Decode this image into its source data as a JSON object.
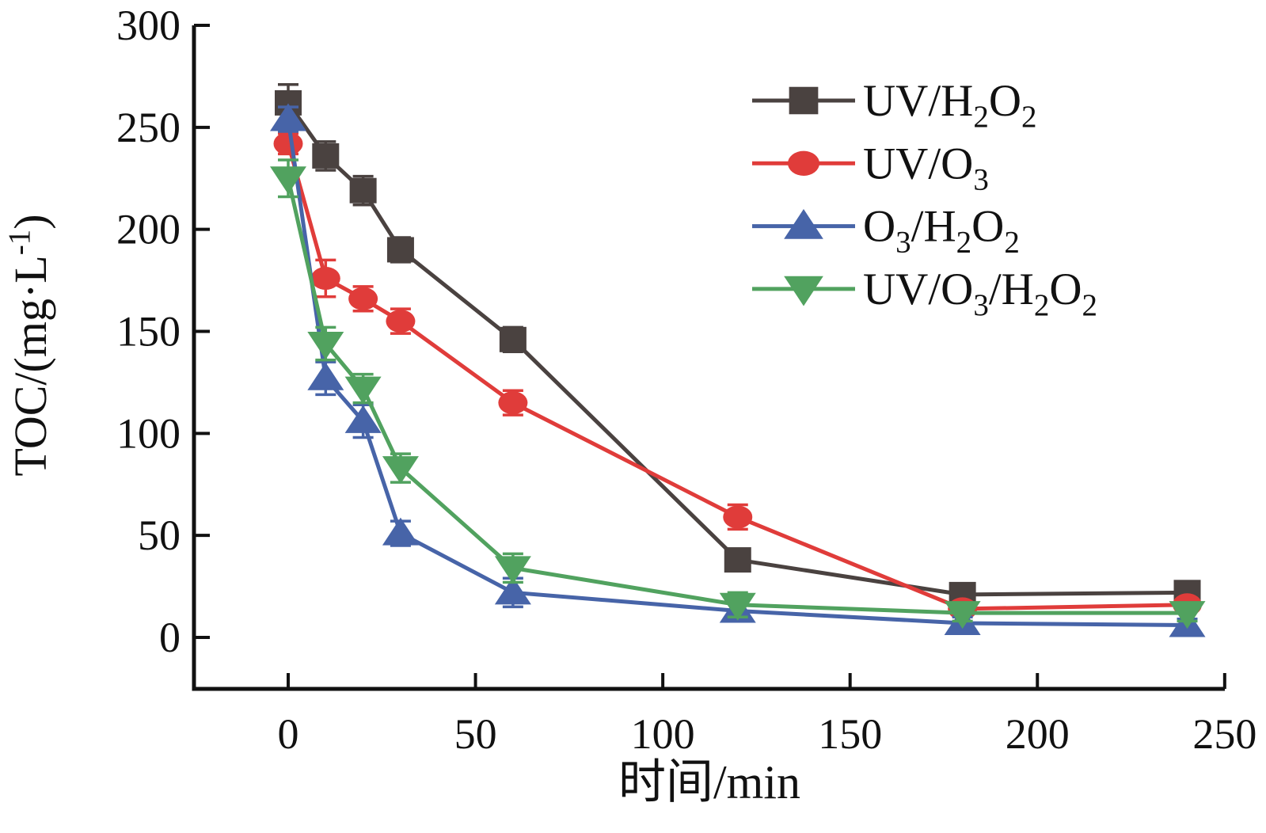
{
  "figure": {
    "background": "#ffffff",
    "axis_color": "#111111",
    "xlabel": "时间/min",
    "ylabel_plain": "TOC/(mg·L-1)",
    "ylabel_parts": [
      {
        "t": "TOC/(mg·L"
      },
      {
        "t": "-1",
        "sup": true
      },
      {
        "t": ")"
      }
    ]
  },
  "chart_data": {
    "type": "line",
    "x": [
      0,
      10,
      20,
      30,
      60,
      120,
      180,
      240
    ],
    "xticks": [
      0,
      50,
      100,
      150,
      200,
      250
    ],
    "yticks": [
      0,
      50,
      100,
      150,
      200,
      250,
      300
    ],
    "xlim": [
      -25,
      251
    ],
    "ylim": [
      -25,
      300
    ],
    "xlabel": "时间/min",
    "ylabel": "TOC/(mg·L^-1)",
    "grid": false,
    "legend_position": "upper-right-inside",
    "error_bars": true,
    "series": [
      {
        "name": "UV/H2O2",
        "slug": "uv-h2o2",
        "marker": "square",
        "color": "#4a4240",
        "values": [
          262,
          236,
          219,
          190,
          146,
          38,
          21,
          22
        ],
        "errors": [
          9,
          7,
          7,
          6,
          6,
          4,
          3,
          3
        ],
        "label_parts": [
          {
            "t": "UV/H"
          },
          {
            "t": "2",
            "sub": true
          },
          {
            "t": "O"
          },
          {
            "t": "2",
            "sub": true
          }
        ]
      },
      {
        "name": "UV/O3",
        "slug": "uv-o3",
        "marker": "circle",
        "color": "#e03c3a",
        "values": [
          242,
          176,
          166,
          155,
          115,
          59,
          14,
          16
        ],
        "errors": [
          5,
          9,
          6,
          6,
          6,
          6,
          3,
          3
        ],
        "label_parts": [
          {
            "t": "UV/O"
          },
          {
            "t": "3",
            "sub": true
          }
        ]
      },
      {
        "name": "O3/H2O2",
        "slug": "o3-h2o2",
        "marker": "triangle-up",
        "color": "#4764a8",
        "values": [
          254,
          127,
          106,
          51,
          22,
          13,
          7,
          6
        ],
        "errors": [
          6,
          8,
          8,
          6,
          7,
          5,
          3,
          3
        ],
        "label_parts": [
          {
            "t": "O"
          },
          {
            "t": "3",
            "sub": true
          },
          {
            "t": "/H"
          },
          {
            "t": "2",
            "sub": true
          },
          {
            "t": "O"
          },
          {
            "t": "2",
            "sub": true
          }
        ]
      },
      {
        "name": "UV/O3/H2O2",
        "slug": "uv-o3-h2o2",
        "marker": "triangle-down",
        "color": "#51a25f",
        "values": [
          225,
          144,
          122,
          83,
          34,
          16,
          12,
          12
        ],
        "errors": [
          9,
          8,
          7,
          7,
          7,
          6,
          4,
          4
        ],
        "label_parts": [
          {
            "t": "UV/O"
          },
          {
            "t": "3",
            "sub": true
          },
          {
            "t": "/H"
          },
          {
            "t": "2",
            "sub": true
          },
          {
            "t": "O"
          },
          {
            "t": "2",
            "sub": true
          }
        ]
      }
    ]
  }
}
